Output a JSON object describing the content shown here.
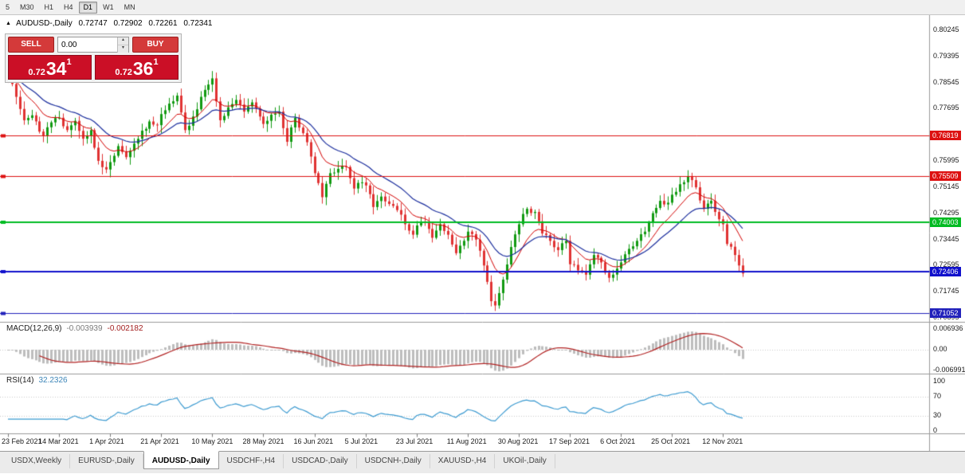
{
  "toolbar": {
    "timeframes": [
      {
        "label": "5",
        "active": false
      },
      {
        "label": "M30",
        "active": false
      },
      {
        "label": "H1",
        "active": false
      },
      {
        "label": "H4",
        "active": false
      },
      {
        "label": "D1",
        "active": true
      },
      {
        "label": "W1",
        "active": false
      },
      {
        "label": "MN",
        "active": false
      }
    ]
  },
  "chart_header": {
    "collapse_icon": "▲",
    "symbol": "AUDUSD-,Daily",
    "open": "0.72747",
    "high": "0.72902",
    "low": "0.72261",
    "close": "0.72341"
  },
  "trade_panel": {
    "sell_label": "SELL",
    "buy_label": "BUY",
    "volume": "0.00",
    "sell_price": {
      "prefix": "0.72",
      "big": "34",
      "sup": "1"
    },
    "buy_price": {
      "prefix": "0.72",
      "big": "36",
      "sup": "1"
    }
  },
  "price_axis": {
    "values": [
      0.80245,
      0.79395,
      0.78545,
      0.77695,
      0.76845,
      0.75995,
      0.75145,
      0.74295,
      0.73445,
      0.72595,
      0.71745,
      0.70895
    ]
  },
  "hlines": [
    {
      "price": 0.76819,
      "label": "0.76819",
      "color": "#dd1111",
      "width": 1
    },
    {
      "price": 0.75509,
      "label": "0.75509",
      "color": "#dd1111",
      "width": 1
    },
    {
      "price": 0.74003,
      "label": "0.74003",
      "color": "#00bb22",
      "width": 2
    },
    {
      "price": 0.72406,
      "label": "0.72406",
      "color": "#1111cc",
      "width": 2
    },
    {
      "price": 0.71052,
      "label": "0.71052",
      "color": "#2222bb",
      "width": 1
    }
  ],
  "indicators": {
    "macd": {
      "title": "MACD(12,26,9)",
      "value_main": "-0.003939",
      "value_signal": "-0.002182",
      "axis": [
        {
          "v": 0.006936,
          "t": "0.006936"
        },
        {
          "v": 0,
          "t": "0.00"
        },
        {
          "v": -0.006991,
          "t": "-0.006991"
        }
      ]
    },
    "rsi": {
      "title": "RSI(14)",
      "value": "32.2326",
      "levels": [
        70,
        30
      ],
      "axis": [
        {
          "v": 100,
          "t": "100"
        },
        {
          "v": 70,
          "t": "70"
        },
        {
          "v": 30,
          "t": "30"
        },
        {
          "v": 0,
          "t": "0"
        }
      ]
    }
  },
  "time_axis": {
    "indices": [
      0,
      13,
      26,
      39,
      52,
      65,
      78,
      91,
      104,
      117,
      130,
      143,
      156,
      169,
      182
    ],
    "labels": [
      "23 Feb 2021",
      "14 Mar 2021",
      "1 Apr 2021",
      "21 Apr 2021",
      "10 May 2021",
      "28 May 2021",
      "16 Jun 2021",
      "5 Jul 2021",
      "23 Jul 2021",
      "11 Aug 2021",
      "30 Aug 2021",
      "17 Sep 2021",
      "6 Oct 2021",
      "25 Oct 2021",
      "12 Nov 2021"
    ]
  },
  "tabs": [
    {
      "label": "USDX,Weekly",
      "active": false
    },
    {
      "label": "EURUSD-,Daily",
      "active": false
    },
    {
      "label": "AUDUSD-,Daily",
      "active": true
    },
    {
      "label": "USDCHF-,H4",
      "active": false
    },
    {
      "label": "USDCAD-,Daily",
      "active": false
    },
    {
      "label": "USDCNH-,Daily",
      "active": false
    },
    {
      "label": "XAUUSD-,H4",
      "active": false
    },
    {
      "label": "UKOil-,Daily",
      "active": false
    }
  ],
  "chart_data": {
    "type": "candlestick",
    "symbol": "AUDUSD-",
    "timeframe": "Daily",
    "bars": 188,
    "noise": 0.0018,
    "price_range": [
      0.7082,
      0.8058
    ],
    "close_anchors": [
      [
        0,
        0.7878
      ],
      [
        2,
        0.7808
      ],
      [
        4,
        0.7732
      ],
      [
        6,
        0.7748
      ],
      [
        9,
        0.768
      ],
      [
        11,
        0.7725
      ],
      [
        13,
        0.774
      ],
      [
        15,
        0.77
      ],
      [
        17,
        0.773
      ],
      [
        19,
        0.7672
      ],
      [
        21,
        0.77
      ],
      [
        23,
        0.76
      ],
      [
        25,
        0.7572
      ],
      [
        26,
        0.7596
      ],
      [
        28,
        0.7648
      ],
      [
        30,
        0.7612
      ],
      [
        32,
        0.7656
      ],
      [
        34,
        0.7698
      ],
      [
        36,
        0.7728
      ],
      [
        38,
        0.7716
      ],
      [
        39,
        0.7752
      ],
      [
        41,
        0.7786
      ],
      [
        43,
        0.7812
      ],
      [
        45,
        0.77
      ],
      [
        47,
        0.7744
      ],
      [
        49,
        0.7808
      ],
      [
        52,
        0.7868
      ],
      [
        54,
        0.7732
      ],
      [
        56,
        0.7774
      ],
      [
        58,
        0.7798
      ],
      [
        60,
        0.776
      ],
      [
        62,
        0.779
      ],
      [
        64,
        0.7744
      ],
      [
        65,
        0.772
      ],
      [
        67,
        0.775
      ],
      [
        69,
        0.776
      ],
      [
        71,
        0.7662
      ],
      [
        73,
        0.774
      ],
      [
        75,
        0.769
      ],
      [
        77,
        0.7614
      ],
      [
        78,
        0.756
      ],
      [
        80,
        0.7482
      ],
      [
        82,
        0.756
      ],
      [
        84,
        0.7574
      ],
      [
        86,
        0.758
      ],
      [
        88,
        0.751
      ],
      [
        90,
        0.753
      ],
      [
        91,
        0.752
      ],
      [
        93,
        0.745
      ],
      [
        95,
        0.7484
      ],
      [
        97,
        0.746
      ],
      [
        99,
        0.744
      ],
      [
        101,
        0.7394
      ],
      [
        103,
        0.736
      ],
      [
        104,
        0.739
      ],
      [
        106,
        0.74
      ],
      [
        108,
        0.735
      ],
      [
        110,
        0.7394
      ],
      [
        112,
        0.736
      ],
      [
        114,
        0.73
      ],
      [
        116,
        0.734
      ],
      [
        117,
        0.737
      ],
      [
        119,
        0.7344
      ],
      [
        121,
        0.726
      ],
      [
        123,
        0.7144
      ],
      [
        124,
        0.713
      ],
      [
        126,
        0.7214
      ],
      [
        128,
        0.732
      ],
      [
        130,
        0.7394
      ],
      [
        132,
        0.7444
      ],
      [
        134,
        0.7434
      ],
      [
        136,
        0.7364
      ],
      [
        138,
        0.734
      ],
      [
        140,
        0.731
      ],
      [
        142,
        0.734
      ],
      [
        143,
        0.7264
      ],
      [
        145,
        0.7244
      ],
      [
        147,
        0.723
      ],
      [
        149,
        0.7294
      ],
      [
        151,
        0.727
      ],
      [
        153,
        0.722
      ],
      [
        155,
        0.725
      ],
      [
        156,
        0.727
      ],
      [
        158,
        0.7314
      ],
      [
        160,
        0.734
      ],
      [
        162,
        0.737
      ],
      [
        164,
        0.743
      ],
      [
        166,
        0.747
      ],
      [
        168,
        0.7464
      ],
      [
        169,
        0.749
      ],
      [
        171,
        0.7524
      ],
      [
        173,
        0.755
      ],
      [
        175,
        0.7514
      ],
      [
        177,
        0.7444
      ],
      [
        179,
        0.747
      ],
      [
        181,
        0.741
      ],
      [
        182,
        0.7394
      ],
      [
        183,
        0.733
      ],
      [
        185,
        0.7294
      ],
      [
        186,
        0.726
      ],
      [
        187,
        0.7234
      ]
    ],
    "ma_fast_period": 10,
    "ma_slow_period": 21,
    "macd_params": [
      12,
      26,
      9
    ],
    "rsi_period": 14,
    "colors": {
      "up": "#119a11",
      "down": "#e03232",
      "ma_fast": "#d40000",
      "ma_slow": "#1c2f9e",
      "macd_hist": "#bdbdbd",
      "macd_signal": "#b22222",
      "rsi": "#3d9bd1",
      "panel_red": "#cb0f26"
    }
  }
}
